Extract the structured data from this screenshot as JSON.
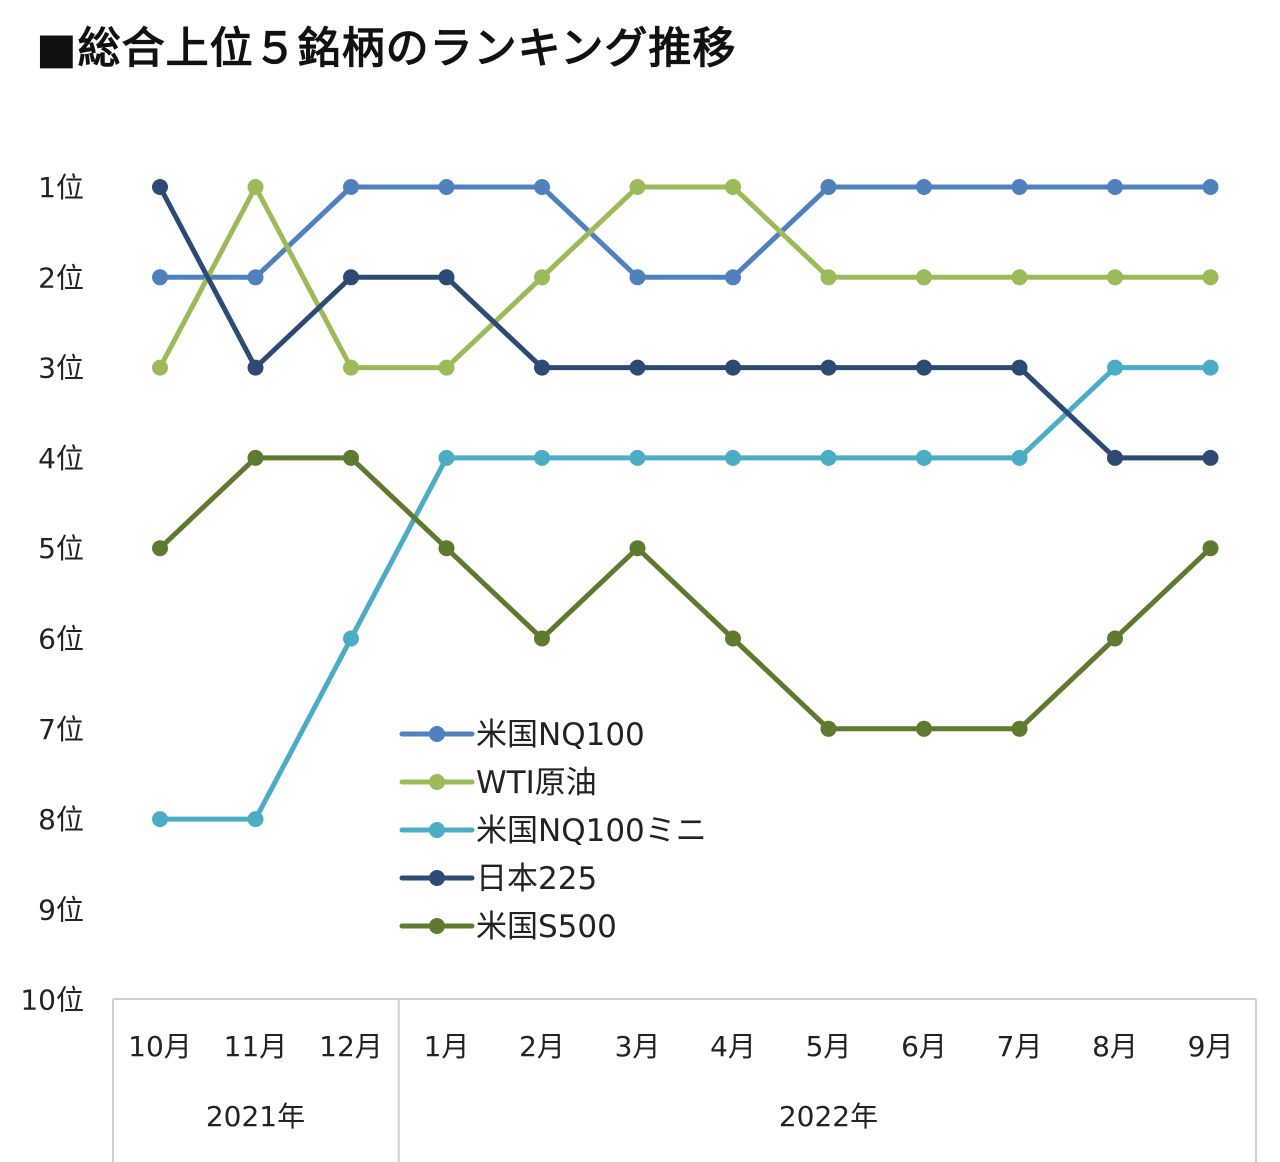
{
  "title": "■総合上位５銘柄のランキング推移",
  "chart_data": {
    "type": "line",
    "title": "■総合上位５銘柄のランキング推移",
    "y_axis": {
      "reversed": true,
      "range": [
        1,
        10
      ],
      "tick_labels": [
        "1位",
        "2位",
        "3位",
        "4位",
        "5位",
        "6位",
        "7位",
        "8位",
        "9位",
        "10位"
      ]
    },
    "categories": [
      "10月",
      "11月",
      "12月",
      "1月",
      "2月",
      "3月",
      "4月",
      "5月",
      "6月",
      "7月",
      "8月",
      "9月"
    ],
    "category_groups": [
      {
        "label": "2021年",
        "count": 3
      },
      {
        "label": "2022年",
        "count": 9
      }
    ],
    "series": [
      {
        "name": "米国NQ100",
        "color": "#4F81BD",
        "values": [
          2,
          2,
          1,
          1,
          1,
          2,
          2,
          1,
          1,
          1,
          1,
          1
        ]
      },
      {
        "name": "WTI原油",
        "color": "#9BBB59",
        "values": [
          3,
          1,
          3,
          3,
          2,
          1,
          1,
          2,
          2,
          2,
          2,
          2
        ]
      },
      {
        "name": "米国NQ100ミニ",
        "color": "#4BACC6",
        "values": [
          8,
          8,
          6,
          4,
          4,
          4,
          4,
          4,
          4,
          4,
          3,
          3
        ]
      },
      {
        "name": "日本225",
        "color": "#2C4A74",
        "values": [
          1,
          3,
          2,
          2,
          3,
          3,
          3,
          3,
          3,
          3,
          4,
          4
        ]
      },
      {
        "name": "米国S500",
        "color": "#5E7A2E",
        "values": [
          5,
          4,
          4,
          5,
          6,
          5,
          6,
          7,
          7,
          7,
          6,
          5
        ]
      }
    ],
    "legend_position": "inside-lower-center",
    "grid": false
  }
}
